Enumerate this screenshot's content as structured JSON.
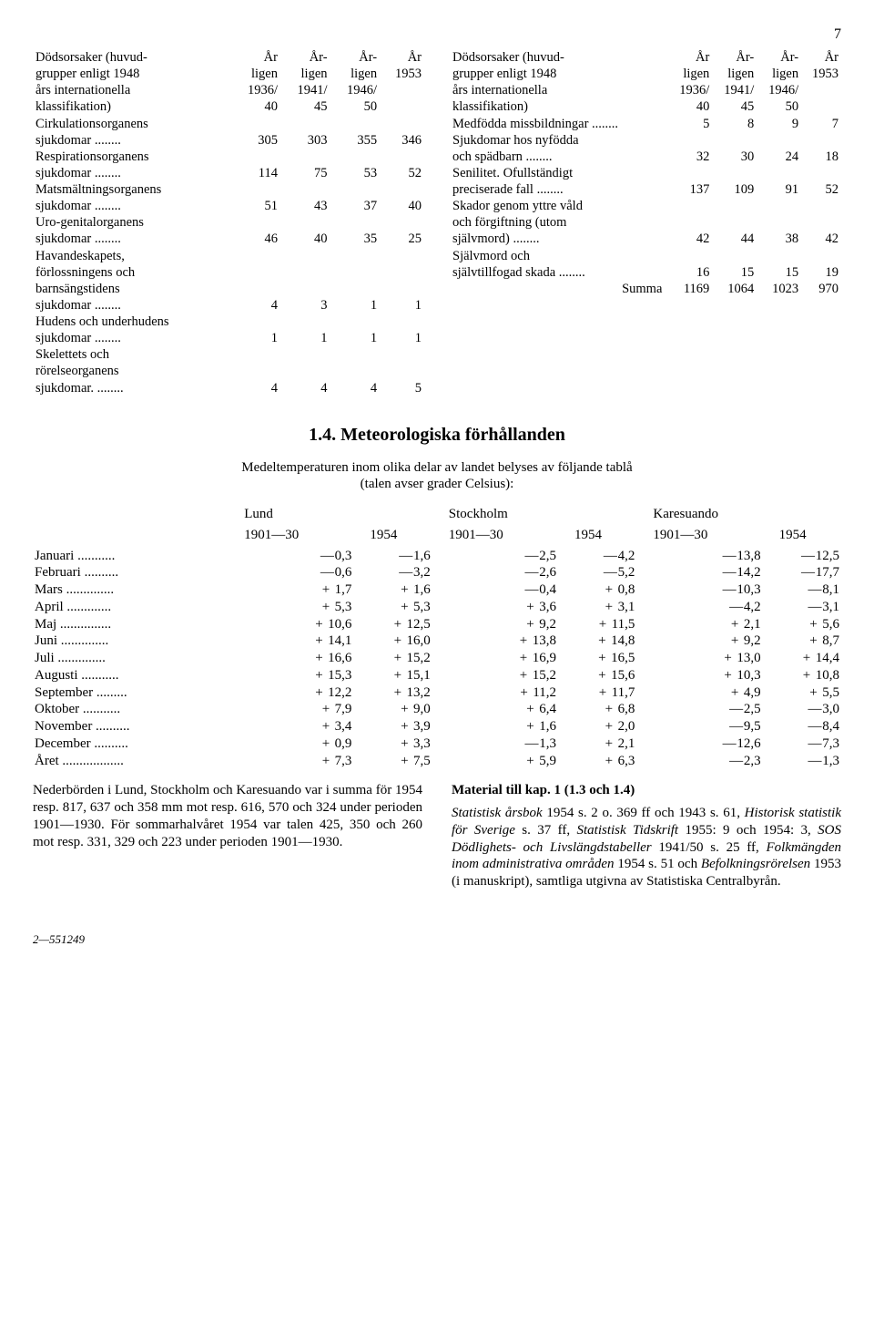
{
  "page_number": "7",
  "top_tables": {
    "header_label": "Dödsorsaker (huvudgrupper enligt 1948 års internationella klassifikation)",
    "columns": [
      "Årligen 1936/40",
      "Årligen 1941/45",
      "Årligen 1946/50",
      "År 1953"
    ],
    "col_line1": [
      "År",
      "År-",
      "År-",
      "År"
    ],
    "col_line2": [
      "ligen",
      "ligen",
      "ligen",
      "1953"
    ],
    "col_line3": [
      "1936/",
      "1941/",
      "1946/",
      ""
    ],
    "col_line4": [
      "40",
      "45",
      "50",
      ""
    ],
    "left_rows": [
      {
        "label": "Cirkulationsorganens sjukdomar",
        "v": [
          "305",
          "303",
          "355",
          "346"
        ]
      },
      {
        "label": "Respirationsorganens sjukdomar",
        "v": [
          "114",
          "75",
          "53",
          "52"
        ]
      },
      {
        "label": "Matsmältningsorganens sjukdomar",
        "v": [
          "51",
          "43",
          "37",
          "40"
        ]
      },
      {
        "label": "Uro-genitalorganens sjukdomar",
        "v": [
          "46",
          "40",
          "35",
          "25"
        ]
      },
      {
        "label": "Havandeskapets, förlossningens och barnsängstidens sjukdomar",
        "v": [
          "4",
          "3",
          "1",
          "1"
        ]
      },
      {
        "label": "Hudens och underhudens sjukdomar",
        "v": [
          "1",
          "1",
          "1",
          "1"
        ]
      },
      {
        "label": "Skelettets och rörelseorganens sjukdomar.",
        "v": [
          "4",
          "4",
          "4",
          "5"
        ]
      }
    ],
    "right_rows": [
      {
        "label": "Medfödda missbildningar",
        "v": [
          "5",
          "8",
          "9",
          "7"
        ]
      },
      {
        "label": "Sjukdomar hos nyfödda och spädbarn",
        "v": [
          "32",
          "30",
          "24",
          "18"
        ]
      },
      {
        "label": "Senilitet. Ofullständigt preciserade fall",
        "v": [
          "137",
          "109",
          "91",
          "52"
        ]
      },
      {
        "label": "Skador genom yttre våld och förgiftning (utom självmord)",
        "v": [
          "42",
          "44",
          "38",
          "42"
        ]
      },
      {
        "label": "Självmord och självtillfogad skada",
        "v": [
          "16",
          "15",
          "15",
          "19"
        ]
      }
    ],
    "summa_label": "Summa",
    "summa_values": [
      "1169",
      "1064",
      "1023",
      "970"
    ]
  },
  "section_title": "1.4. Meteorologiska förhållanden",
  "intro_line1": "Medeltemperaturen inom olika delar av landet belyses av följande tablå",
  "intro_line2": "(talen avser grader Celsius):",
  "meteo": {
    "cities": [
      "Lund",
      "Stockholm",
      "Karesuando"
    ],
    "periods": [
      "1901—30",
      "1954"
    ],
    "months": [
      "Januari",
      "Februari",
      "Mars",
      "April",
      "Maj",
      "Juni",
      "Juli",
      "Augusti",
      "September",
      "Oktober",
      "November",
      "December"
    ],
    "data": [
      [
        {
          "s": "—",
          "v": "0,3"
        },
        {
          "s": "—",
          "v": "1,6"
        },
        {
          "s": "—",
          "v": "2,5"
        },
        {
          "s": "—",
          "v": "4,2"
        },
        {
          "s": "—",
          "v": "13,8"
        },
        {
          "s": "—",
          "v": "12,5"
        }
      ],
      [
        {
          "s": "—",
          "v": "0,6"
        },
        {
          "s": "—",
          "v": "3,2"
        },
        {
          "s": "—",
          "v": "2,6"
        },
        {
          "s": "—",
          "v": "5,2"
        },
        {
          "s": "—",
          "v": "14,2"
        },
        {
          "s": "—",
          "v": "17,7"
        }
      ],
      [
        {
          "s": "+",
          "v": "1,7"
        },
        {
          "s": "+",
          "v": "1,6"
        },
        {
          "s": "—",
          "v": "0,4"
        },
        {
          "s": "+",
          "v": "0,8"
        },
        {
          "s": "—",
          "v": "10,3"
        },
        {
          "s": "—",
          "v": "8,1"
        }
      ],
      [
        {
          "s": "+",
          "v": "5,3"
        },
        {
          "s": "+",
          "v": "5,3"
        },
        {
          "s": "+",
          "v": "3,6"
        },
        {
          "s": "+",
          "v": "3,1"
        },
        {
          "s": "—",
          "v": "4,2"
        },
        {
          "s": "—",
          "v": "3,1"
        }
      ],
      [
        {
          "s": "+",
          "v": "10,6"
        },
        {
          "s": "+",
          "v": "12,5"
        },
        {
          "s": "+",
          "v": "9,2"
        },
        {
          "s": "+",
          "v": "11,5"
        },
        {
          "s": "+",
          "v": "2,1"
        },
        {
          "s": "+",
          "v": "5,6"
        }
      ],
      [
        {
          "s": "+",
          "v": "14,1"
        },
        {
          "s": "+",
          "v": "16,0"
        },
        {
          "s": "+",
          "v": "13,8"
        },
        {
          "s": "+",
          "v": "14,8"
        },
        {
          "s": "+",
          "v": "9,2"
        },
        {
          "s": "+",
          "v": "8,7"
        }
      ],
      [
        {
          "s": "+",
          "v": "16,6"
        },
        {
          "s": "+",
          "v": "15,2"
        },
        {
          "s": "+",
          "v": "16,9"
        },
        {
          "s": "+",
          "v": "16,5"
        },
        {
          "s": "+",
          "v": "13,0"
        },
        {
          "s": "+",
          "v": "14,4"
        }
      ],
      [
        {
          "s": "+",
          "v": "15,3"
        },
        {
          "s": "+",
          "v": "15,1"
        },
        {
          "s": "+",
          "v": "15,2"
        },
        {
          "s": "+",
          "v": "15,6"
        },
        {
          "s": "+",
          "v": "10,3"
        },
        {
          "s": "+",
          "v": "10,8"
        }
      ],
      [
        {
          "s": "+",
          "v": "12,2"
        },
        {
          "s": "+",
          "v": "13,2"
        },
        {
          "s": "+",
          "v": "11,2"
        },
        {
          "s": "+",
          "v": "11,7"
        },
        {
          "s": "+",
          "v": "4,9"
        },
        {
          "s": "+",
          "v": "5,5"
        }
      ],
      [
        {
          "s": "+",
          "v": "7,9"
        },
        {
          "s": "+",
          "v": "9,0"
        },
        {
          "s": "+",
          "v": "6,4"
        },
        {
          "s": "+",
          "v": "6,8"
        },
        {
          "s": "—",
          "v": "2,5"
        },
        {
          "s": "—",
          "v": "3,0"
        }
      ],
      [
        {
          "s": "+",
          "v": "3,4"
        },
        {
          "s": "+",
          "v": "3,9"
        },
        {
          "s": "+",
          "v": "1,6"
        },
        {
          "s": "+",
          "v": "2,0"
        },
        {
          "s": "—",
          "v": "9,5"
        },
        {
          "s": "—",
          "v": "8,4"
        }
      ],
      [
        {
          "s": "+",
          "v": "0,9"
        },
        {
          "s": "+",
          "v": "3,3"
        },
        {
          "s": "—",
          "v": "1,3"
        },
        {
          "s": "+",
          "v": "2,1"
        },
        {
          "s": "—",
          "v": "12,6"
        },
        {
          "s": "—",
          "v": "7,3"
        }
      ]
    ],
    "year_label": "Året",
    "year_row": [
      {
        "s": "+",
        "v": "7,3"
      },
      {
        "s": "+",
        "v": "7,5"
      },
      {
        "s": "+",
        "v": "5,9"
      },
      {
        "s": "+",
        "v": "6,3"
      },
      {
        "s": "—",
        "v": "2,3"
      },
      {
        "s": "—",
        "v": "1,3"
      }
    ]
  },
  "bottom_left": "Nederbörden i Lund, Stockholm och Karesuando var i summa för 1954 resp. 817, 637 och 358 mm mot resp. 616, 570 och 324 under perioden 1901—1930. För sommarhalvåret 1954 var talen 425, 350 och 260 mot resp. 331, 329 och 223 under perioden 1901—1930.",
  "bottom_right_title": "Material till kap. 1 (1.3 och 1.4)",
  "bottom_right_body_parts": [
    {
      "t": "Statistisk årsbok",
      "style": "italic"
    },
    {
      "t": " 1954 s. 2 o. 369 ff och 1943 s. 61, ",
      "style": ""
    },
    {
      "t": "Historisk statistik för Sverige",
      "style": "italic"
    },
    {
      "t": " s. 37 ff, ",
      "style": ""
    },
    {
      "t": "Statistisk Tidskrift",
      "style": "italic"
    },
    {
      "t": " 1955: 9 och 1954: 3, ",
      "style": ""
    },
    {
      "t": "SOS Dödlighets- och Livslängdstabeller",
      "style": "italic"
    },
    {
      "t": " 1941/50 s. 25 ff, ",
      "style": ""
    },
    {
      "t": "Folkmängden inom administrativa områden",
      "style": "italic"
    },
    {
      "t": " 1954 s. 51 och ",
      "style": ""
    },
    {
      "t": "Befolkningsrörelsen",
      "style": "italic"
    },
    {
      "t": " 1953 (i manuskript), samtliga utgivna av Statistiska Centralbyrån.",
      "style": ""
    }
  ],
  "footer_ref": "2—551249"
}
